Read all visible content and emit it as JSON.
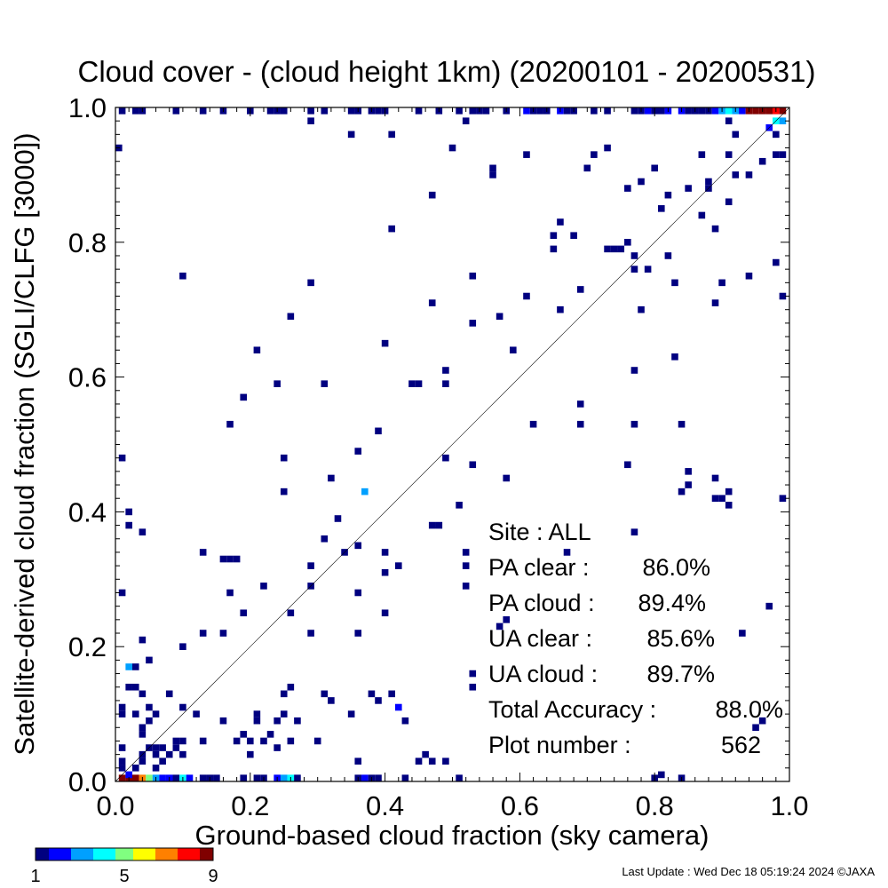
{
  "footer": {
    "last_update": "Last Update : Wed Dec 18 05:19:24 2024  ©JAXA"
  },
  "colorbar": {
    "labels": [
      "1",
      "5",
      "9"
    ],
    "colors": [
      "#000080",
      "#0000ff",
      "#00a0ff",
      "#00ffff",
      "#80ff80",
      "#ffff00",
      "#ff8000",
      "#ff0000",
      "#800000"
    ]
  },
  "chart_data": {
    "type": "scatter",
    "title": "Cloud cover - (cloud height 1km)  (20200101 - 20200531)",
    "xlabel": "Ground-based cloud fraction (sky camera)",
    "ylabel": "Satellite-derived cloud fraction (SGLI/CLFG [3000])",
    "xlim": [
      0.0,
      1.0
    ],
    "ylim": [
      0.0,
      1.0
    ],
    "xticks": [
      "0.0",
      "0.2",
      "0.4",
      "0.6",
      "0.8",
      "1.0"
    ],
    "yticks": [
      "0.0",
      "0.2",
      "0.4",
      "0.6",
      "0.8",
      "1.0"
    ],
    "diagonal_line": true,
    "cell_size": 0.01,
    "stats": [
      {
        "label": "Site : ALL",
        "value": ""
      },
      {
        "label": "PA clear :",
        "value": "86.0%"
      },
      {
        "label": "PA cloud :",
        "value": "89.4%"
      },
      {
        "label": "UA clear :",
        "value": "85.6%"
      },
      {
        "label": "UA cloud :",
        "value": "89.7%"
      },
      {
        "label": "Total Accuracy :",
        "value": "88.0%"
      },
      {
        "label": "Plot number :",
        "value": "562"
      }
    ],
    "points": [
      [
        0.01,
        0.0,
        9
      ],
      [
        0.02,
        0.0,
        9
      ],
      [
        0.03,
        0.0,
        9
      ],
      [
        0.04,
        0.0,
        7
      ],
      [
        0.05,
        0.0,
        5
      ],
      [
        0.06,
        0.0,
        3
      ],
      [
        0.07,
        0.0,
        2
      ],
      [
        0.08,
        0.0,
        2
      ],
      [
        0.09,
        0.0,
        1
      ],
      [
        0.1,
        0.0,
        4
      ],
      [
        0.11,
        0.0,
        2
      ],
      [
        0.13,
        0.0,
        1
      ],
      [
        0.14,
        0.0,
        1
      ],
      [
        0.15,
        0.0,
        1
      ],
      [
        0.19,
        0.0,
        1
      ],
      [
        0.21,
        0.0,
        1
      ],
      [
        0.22,
        0.0,
        1
      ],
      [
        0.24,
        0.0,
        2
      ],
      [
        0.25,
        0.0,
        3
      ],
      [
        0.26,
        0.0,
        4
      ],
      [
        0.27,
        0.0,
        1
      ],
      [
        0.36,
        0.0,
        1
      ],
      [
        0.37,
        0.0,
        2
      ],
      [
        0.38,
        0.0,
        1
      ],
      [
        0.39,
        0.0,
        1
      ],
      [
        0.43,
        0.0,
        1
      ],
      [
        0.51,
        0.0,
        1
      ],
      [
        0.8,
        0.0,
        1
      ],
      [
        0.84,
        0.0,
        1
      ],
      [
        0.02,
        0.01,
        2
      ],
      [
        0.81,
        0.01,
        1
      ],
      [
        0.01,
        0.02,
        1
      ],
      [
        0.03,
        0.02,
        1
      ],
      [
        0.06,
        0.02,
        1
      ],
      [
        0.01,
        0.03,
        1
      ],
      [
        0.04,
        0.03,
        1
      ],
      [
        0.07,
        0.03,
        1
      ],
      [
        0.36,
        0.03,
        1
      ],
      [
        0.45,
        0.03,
        1
      ],
      [
        0.47,
        0.03,
        1
      ],
      [
        0.49,
        0.03,
        1
      ],
      [
        0.04,
        0.04,
        1
      ],
      [
        0.06,
        0.04,
        1
      ],
      [
        0.08,
        0.04,
        1
      ],
      [
        0.1,
        0.04,
        1
      ],
      [
        0.2,
        0.04,
        1
      ],
      [
        0.46,
        0.04,
        1
      ],
      [
        0.01,
        0.05,
        1
      ],
      [
        0.05,
        0.05,
        1
      ],
      [
        0.06,
        0.05,
        1
      ],
      [
        0.07,
        0.05,
        1
      ],
      [
        0.09,
        0.05,
        1
      ],
      [
        0.24,
        0.05,
        1
      ],
      [
        0.09,
        0.06,
        1
      ],
      [
        0.1,
        0.06,
        1
      ],
      [
        0.13,
        0.06,
        1
      ],
      [
        0.18,
        0.06,
        1
      ],
      [
        0.2,
        0.06,
        1
      ],
      [
        0.22,
        0.06,
        1
      ],
      [
        0.26,
        0.06,
        1
      ],
      [
        0.3,
        0.06,
        1
      ],
      [
        0.04,
        0.07,
        1
      ],
      [
        0.19,
        0.07,
        1
      ],
      [
        0.23,
        0.07,
        1
      ],
      [
        0.04,
        0.08,
        1
      ],
      [
        0.95,
        0.08,
        1
      ],
      [
        0.05,
        0.09,
        1
      ],
      [
        0.16,
        0.09,
        1
      ],
      [
        0.21,
        0.09,
        1
      ],
      [
        0.24,
        0.09,
        1
      ],
      [
        0.27,
        0.09,
        1
      ],
      [
        0.43,
        0.09,
        1
      ],
      [
        0.96,
        0.09,
        1
      ],
      [
        0.01,
        0.1,
        1
      ],
      [
        0.03,
        0.1,
        1
      ],
      [
        0.06,
        0.1,
        1
      ],
      [
        0.12,
        0.1,
        1
      ],
      [
        0.21,
        0.1,
        1
      ],
      [
        0.25,
        0.1,
        1
      ],
      [
        0.35,
        0.1,
        1
      ],
      [
        0.01,
        0.11,
        1
      ],
      [
        0.05,
        0.11,
        1
      ],
      [
        0.1,
        0.11,
        1
      ],
      [
        0.42,
        0.11,
        2
      ],
      [
        0.32,
        0.12,
        1
      ],
      [
        0.39,
        0.12,
        1
      ],
      [
        0.04,
        0.13,
        1
      ],
      [
        0.08,
        0.13,
        1
      ],
      [
        0.25,
        0.13,
        1
      ],
      [
        0.31,
        0.13,
        1
      ],
      [
        0.38,
        0.13,
        1
      ],
      [
        0.41,
        0.13,
        1
      ],
      [
        0.02,
        0.14,
        1
      ],
      [
        0.03,
        0.14,
        1
      ],
      [
        0.26,
        0.14,
        1
      ],
      [
        0.53,
        0.14,
        1
      ],
      [
        0.53,
        0.16,
        1
      ],
      [
        0.02,
        0.17,
        3
      ],
      [
        0.03,
        0.17,
        1
      ],
      [
        0.05,
        0.18,
        1
      ],
      [
        0.1,
        0.2,
        1
      ],
      [
        0.04,
        0.21,
        1
      ],
      [
        0.13,
        0.22,
        1
      ],
      [
        0.16,
        0.22,
        1
      ],
      [
        0.29,
        0.22,
        1
      ],
      [
        0.36,
        0.22,
        1
      ],
      [
        0.93,
        0.22,
        1
      ],
      [
        0.57,
        0.23,
        1
      ],
      [
        0.58,
        0.24,
        1
      ],
      [
        0.19,
        0.25,
        1
      ],
      [
        0.26,
        0.25,
        1
      ],
      [
        0.4,
        0.25,
        1
      ],
      [
        0.97,
        0.26,
        1
      ],
      [
        0.17,
        0.28,
        1
      ],
      [
        0.36,
        0.28,
        1
      ],
      [
        0.01,
        0.28,
        1
      ],
      [
        0.22,
        0.29,
        1
      ],
      [
        0.29,
        0.29,
        1
      ],
      [
        0.52,
        0.29,
        1
      ],
      [
        0.4,
        0.31,
        1
      ],
      [
        0.29,
        0.32,
        1
      ],
      [
        0.42,
        0.32,
        1
      ],
      [
        0.52,
        0.32,
        1
      ],
      [
        0.17,
        0.33,
        1
      ],
      [
        0.18,
        0.33,
        1
      ],
      [
        0.16,
        0.33,
        1
      ],
      [
        0.13,
        0.34,
        1
      ],
      [
        0.34,
        0.34,
        1
      ],
      [
        0.4,
        0.34,
        1
      ],
      [
        0.52,
        0.34,
        1
      ],
      [
        0.67,
        0.34,
        1
      ],
      [
        0.36,
        0.35,
        1
      ],
      [
        0.31,
        0.36,
        1
      ],
      [
        0.04,
        0.37,
        1
      ],
      [
        0.77,
        0.37,
        1
      ],
      [
        0.02,
        0.38,
        1
      ],
      [
        0.47,
        0.38,
        1
      ],
      [
        0.48,
        0.38,
        1
      ],
      [
        0.33,
        0.39,
        1
      ],
      [
        0.02,
        0.4,
        1
      ],
      [
        0.51,
        0.41,
        1
      ],
      [
        0.9,
        0.42,
        1
      ],
      [
        0.91,
        0.41,
        1
      ],
      [
        0.91,
        0.43,
        1
      ],
      [
        0.89,
        0.42,
        1
      ],
      [
        0.99,
        0.42,
        1
      ],
      [
        0.37,
        0.43,
        3
      ],
      [
        0.25,
        0.43,
        1
      ],
      [
        0.84,
        0.43,
        1
      ],
      [
        0.85,
        0.44,
        1
      ],
      [
        0.85,
        0.46,
        1
      ],
      [
        0.89,
        0.45,
        1
      ],
      [
        0.32,
        0.45,
        1
      ],
      [
        0.58,
        0.45,
        1
      ],
      [
        0.53,
        0.47,
        1
      ],
      [
        0.76,
        0.47,
        1
      ],
      [
        0.01,
        0.48,
        1
      ],
      [
        0.25,
        0.48,
        1
      ],
      [
        0.49,
        0.48,
        1
      ],
      [
        0.36,
        0.49,
        1
      ],
      [
        0.39,
        0.52,
        1
      ],
      [
        0.17,
        0.53,
        1
      ],
      [
        0.62,
        0.53,
        1
      ],
      [
        0.69,
        0.53,
        1
      ],
      [
        0.77,
        0.53,
        1
      ],
      [
        0.84,
        0.53,
        1
      ],
      [
        0.69,
        0.56,
        1
      ],
      [
        0.19,
        0.57,
        1
      ],
      [
        0.24,
        0.59,
        1
      ],
      [
        0.31,
        0.59,
        1
      ],
      [
        0.44,
        0.59,
        1
      ],
      [
        0.45,
        0.59,
        1
      ],
      [
        0.49,
        0.59,
        1
      ],
      [
        0.49,
        0.61,
        1
      ],
      [
        0.77,
        0.61,
        1
      ],
      [
        0.83,
        0.63,
        1
      ],
      [
        0.21,
        0.64,
        1
      ],
      [
        0.4,
        0.65,
        1
      ],
      [
        0.59,
        0.64,
        1
      ],
      [
        0.26,
        0.69,
        1
      ],
      [
        0.57,
        0.69,
        1
      ],
      [
        0.53,
        0.68,
        1
      ],
      [
        0.66,
        0.7,
        1
      ],
      [
        0.78,
        0.7,
        1
      ],
      [
        0.47,
        0.71,
        1
      ],
      [
        0.89,
        0.71,
        1
      ],
      [
        0.61,
        0.72,
        1
      ],
      [
        0.69,
        0.73,
        1
      ],
      [
        0.99,
        0.72,
        1
      ],
      [
        0.1,
        0.75,
        1
      ],
      [
        0.29,
        0.74,
        1
      ],
      [
        0.53,
        0.75,
        1
      ],
      [
        0.83,
        0.74,
        1
      ],
      [
        0.9,
        0.74,
        1
      ],
      [
        0.94,
        0.75,
        1
      ],
      [
        0.77,
        0.76,
        1
      ],
      [
        0.98,
        0.77,
        1
      ],
      [
        0.77,
        0.78,
        1
      ],
      [
        0.79,
        0.76,
        1
      ],
      [
        0.82,
        0.78,
        1
      ],
      [
        0.73,
        0.79,
        1
      ],
      [
        0.74,
        0.79,
        1
      ],
      [
        0.75,
        0.79,
        1
      ],
      [
        0.65,
        0.79,
        1
      ],
      [
        0.65,
        0.81,
        1
      ],
      [
        0.68,
        0.81,
        1
      ],
      [
        0.66,
        0.83,
        1
      ],
      [
        0.41,
        0.82,
        1
      ],
      [
        0.76,
        0.8,
        1
      ],
      [
        0.89,
        0.82,
        1
      ],
      [
        0.81,
        0.85,
        1
      ],
      [
        0.87,
        0.84,
        1
      ],
      [
        0.82,
        0.87,
        1
      ],
      [
        0.91,
        0.86,
        1
      ],
      [
        0.85,
        0.88,
        1
      ],
      [
        0.88,
        0.88,
        1
      ],
      [
        0.88,
        0.89,
        1
      ],
      [
        0.47,
        0.87,
        1
      ],
      [
        0.76,
        0.88,
        1
      ],
      [
        0.8,
        0.91,
        1
      ],
      [
        0.78,
        0.89,
        1
      ],
      [
        0.56,
        0.9,
        1
      ],
      [
        0.56,
        0.91,
        1
      ],
      [
        0.61,
        0.93,
        1
      ],
      [
        0.7,
        0.91,
        1
      ],
      [
        0.71,
        0.93,
        1
      ],
      [
        0.73,
        0.94,
        1
      ],
      [
        0.92,
        0.9,
        1
      ],
      [
        0.94,
        0.9,
        1
      ],
      [
        0.96,
        0.92,
        1
      ],
      [
        0.99,
        0.93,
        1
      ],
      [
        0.91,
        0.93,
        1
      ],
      [
        0.98,
        0.93,
        1
      ],
      [
        0.0,
        0.94,
        1
      ],
      [
        0.5,
        0.94,
        1
      ],
      [
        0.87,
        0.93,
        1
      ],
      [
        0.41,
        0.96,
        1
      ],
      [
        0.35,
        0.96,
        1
      ],
      [
        0.92,
        0.96,
        1
      ],
      [
        0.97,
        0.97,
        2
      ],
      [
        0.98,
        0.96,
        1
      ],
      [
        0.29,
        0.98,
        1
      ],
      [
        0.52,
        0.98,
        1
      ],
      [
        0.91,
        0.98,
        1
      ],
      [
        0.98,
        0.98,
        4
      ],
      [
        0.99,
        0.98,
        3
      ],
      [
        0.01,
        1.0,
        1
      ],
      [
        0.03,
        1.0,
        1
      ],
      [
        0.04,
        1.0,
        1
      ],
      [
        0.09,
        1.0,
        1
      ],
      [
        0.13,
        1.0,
        1
      ],
      [
        0.16,
        1.0,
        1
      ],
      [
        0.2,
        1.0,
        1
      ],
      [
        0.23,
        1.0,
        1
      ],
      [
        0.24,
        1.0,
        1
      ],
      [
        0.25,
        1.0,
        1
      ],
      [
        0.29,
        1.0,
        1
      ],
      [
        0.31,
        1.0,
        1
      ],
      [
        0.35,
        1.0,
        1
      ],
      [
        0.36,
        1.0,
        1
      ],
      [
        0.38,
        1.0,
        1
      ],
      [
        0.39,
        1.0,
        1
      ],
      [
        0.4,
        1.0,
        1
      ],
      [
        0.45,
        1.0,
        1
      ],
      [
        0.48,
        1.0,
        1
      ],
      [
        0.51,
        1.0,
        1
      ],
      [
        0.53,
        1.0,
        1
      ],
      [
        0.54,
        1.0,
        1
      ],
      [
        0.55,
        1.0,
        1
      ],
      [
        0.58,
        1.0,
        1
      ],
      [
        0.61,
        1.0,
        2
      ],
      [
        0.62,
        1.0,
        1
      ],
      [
        0.63,
        1.0,
        1
      ],
      [
        0.64,
        1.0,
        1
      ],
      [
        0.66,
        1.0,
        2
      ],
      [
        0.67,
        1.0,
        1
      ],
      [
        0.68,
        1.0,
        1
      ],
      [
        0.71,
        1.0,
        1
      ],
      [
        0.73,
        1.0,
        1
      ],
      [
        0.77,
        1.0,
        1
      ],
      [
        0.78,
        1.0,
        1
      ],
      [
        0.79,
        1.0,
        2
      ],
      [
        0.8,
        1.0,
        1
      ],
      [
        0.81,
        1.0,
        1
      ],
      [
        0.82,
        1.0,
        2
      ],
      [
        0.84,
        1.0,
        2
      ],
      [
        0.85,
        1.0,
        1
      ],
      [
        0.86,
        1.0,
        1
      ],
      [
        0.87,
        1.0,
        1
      ],
      [
        0.88,
        1.0,
        1
      ],
      [
        0.89,
        1.0,
        2
      ],
      [
        0.9,
        1.0,
        3
      ],
      [
        0.91,
        1.0,
        4
      ],
      [
        0.92,
        1.0,
        3
      ],
      [
        0.93,
        1.0,
        2
      ],
      [
        0.94,
        1.0,
        9
      ],
      [
        0.95,
        1.0,
        9
      ],
      [
        0.96,
        1.0,
        9
      ],
      [
        0.97,
        1.0,
        9
      ],
      [
        0.98,
        1.0,
        8
      ],
      [
        0.99,
        1.0,
        9
      ]
    ]
  }
}
